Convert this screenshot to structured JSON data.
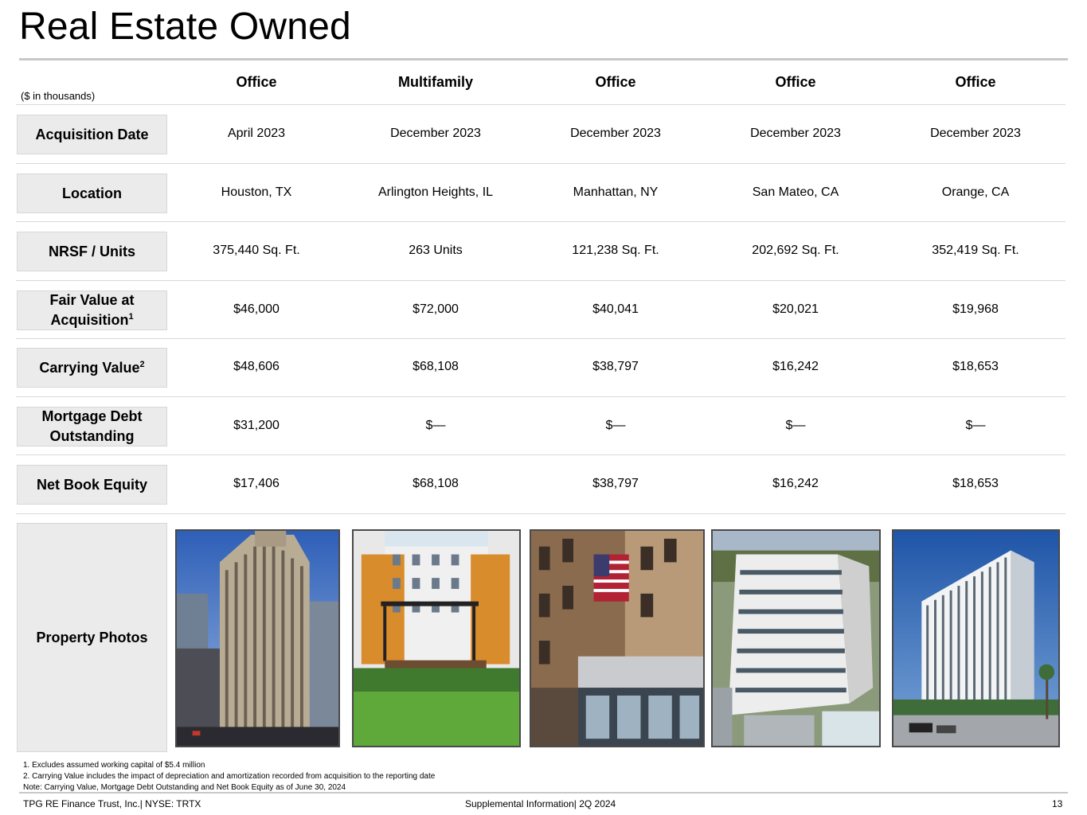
{
  "title": "Real Estate Owned",
  "units_note": "($ in thousands)",
  "columns": [
    "Office",
    "Multifamily",
    "Office",
    "Office",
    "Office"
  ],
  "rows": {
    "acquisition_date": {
      "label": "Acquisition Date",
      "values": [
        "April 2023",
        "December 2023",
        "December 2023",
        "December 2023",
        "December 2023"
      ]
    },
    "location": {
      "label": "Location",
      "values": [
        "Houston, TX",
        "Arlington Heights, IL",
        "Manhattan, NY",
        "San Mateo, CA",
        "Orange, CA"
      ]
    },
    "nrsf_units": {
      "label": "NRSF / Units",
      "values": [
        "375,440 Sq. Ft.",
        "263 Units",
        "121,238 Sq. Ft.",
        "202,692 Sq. Ft.",
        "352,419 Sq. Ft."
      ]
    },
    "fair_value": {
      "label_line1": "Fair Value at",
      "label_line2": "Acquisition",
      "label_sup": "1",
      "values": [
        "$46,000",
        "$72,000",
        "$40,041",
        "$20,021",
        "$19,968"
      ]
    },
    "carrying_value": {
      "label": "Carrying Value",
      "label_sup": "2",
      "values": [
        "$48,606",
        "$68,108",
        "$38,797",
        "$16,242",
        "$18,653"
      ]
    },
    "mortgage_debt": {
      "label_line1": "Mortgage Debt",
      "label_line2": "Outstanding",
      "values": [
        "$31,200",
        "$—",
        "$—",
        "$—",
        "$—"
      ]
    },
    "net_book_equity": {
      "label": "Net Book Equity",
      "values": [
        "$17,406",
        "$68,108",
        "$38,797",
        "$16,242",
        "$18,653"
      ]
    },
    "property_photos": {
      "label": "Property Photos"
    }
  },
  "footnotes": [
    "1. Excludes assumed working capital of $5.4 million",
    "2. Carrying Value includes the impact of depreciation and amortization recorded from acquisition to the reporting date",
    "Note: Carrying Value, Mortgage Debt Outstanding and Net Book Equity as of June 30, 2024"
  ],
  "footer": {
    "company": "TPG RE Finance Trust, Inc.| NYSE: TRTX",
    "center": "Supplemental Information| 2Q 2024",
    "page_number": "13"
  }
}
